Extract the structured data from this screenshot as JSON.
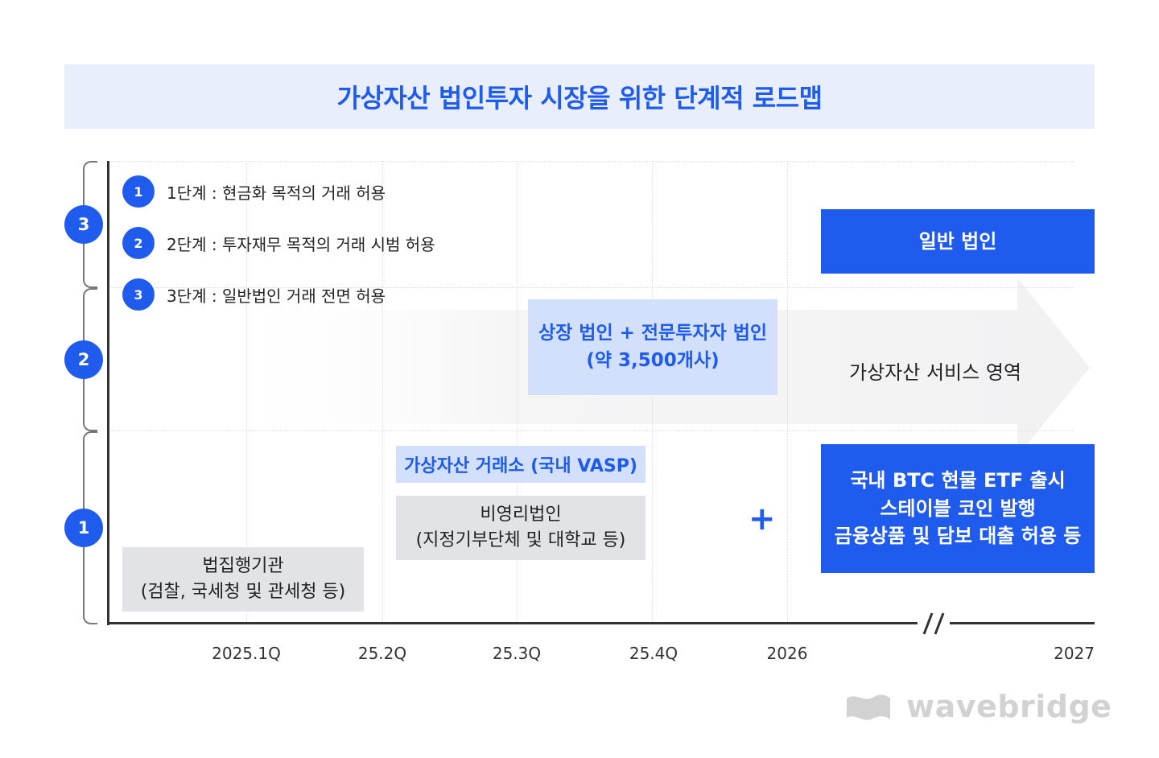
{
  "title": "가상자산 법인투자 시장을 위한 단계적 로드맵",
  "legend": [
    {
      "num": "1",
      "text": "1단계 : 현금화 목적의 거래 허용"
    },
    {
      "num": "2",
      "text": "2단계 : 투자재무 목적의 거래 시범 허용"
    },
    {
      "num": "3",
      "text": "3단계 : 일반법인 거래 전면 허용"
    }
  ],
  "stages": [
    "3",
    "2",
    "1"
  ],
  "boxes": {
    "general_corp": "일반 법인",
    "listed_line1": "상장 법인 + 전문투자자 법인",
    "listed_line2": "(약 3,500개사)",
    "exchange": "가상자산 거래소 (국내 VASP)",
    "nonprofit_line1": "비영리법인",
    "nonprofit_line2": "(지정기부단체 및 대학교 등)",
    "law_line1": "법집행기관",
    "law_line2": "(검찰, 국세청 및 관세청 등)",
    "etf_line1": "국내 BTC 현물 ETF 출시",
    "etf_line2": "스테이블 코인 발행",
    "etf_line3": "금융상품 및 담보 대출 허용 등"
  },
  "arrow_label": "가상자산 서비스 영역",
  "plus_sign": "+",
  "x_ticks": [
    "2025.1Q",
    "25.2Q",
    "25.3Q",
    "25.4Q",
    "2026",
    "2027"
  ],
  "logo": "wavebridge",
  "colors": {
    "accent": "#1f5bec",
    "light_accent": "#d3e0fb",
    "gray_box": "#e2e3e6",
    "title_bg": "#e8eefb"
  }
}
